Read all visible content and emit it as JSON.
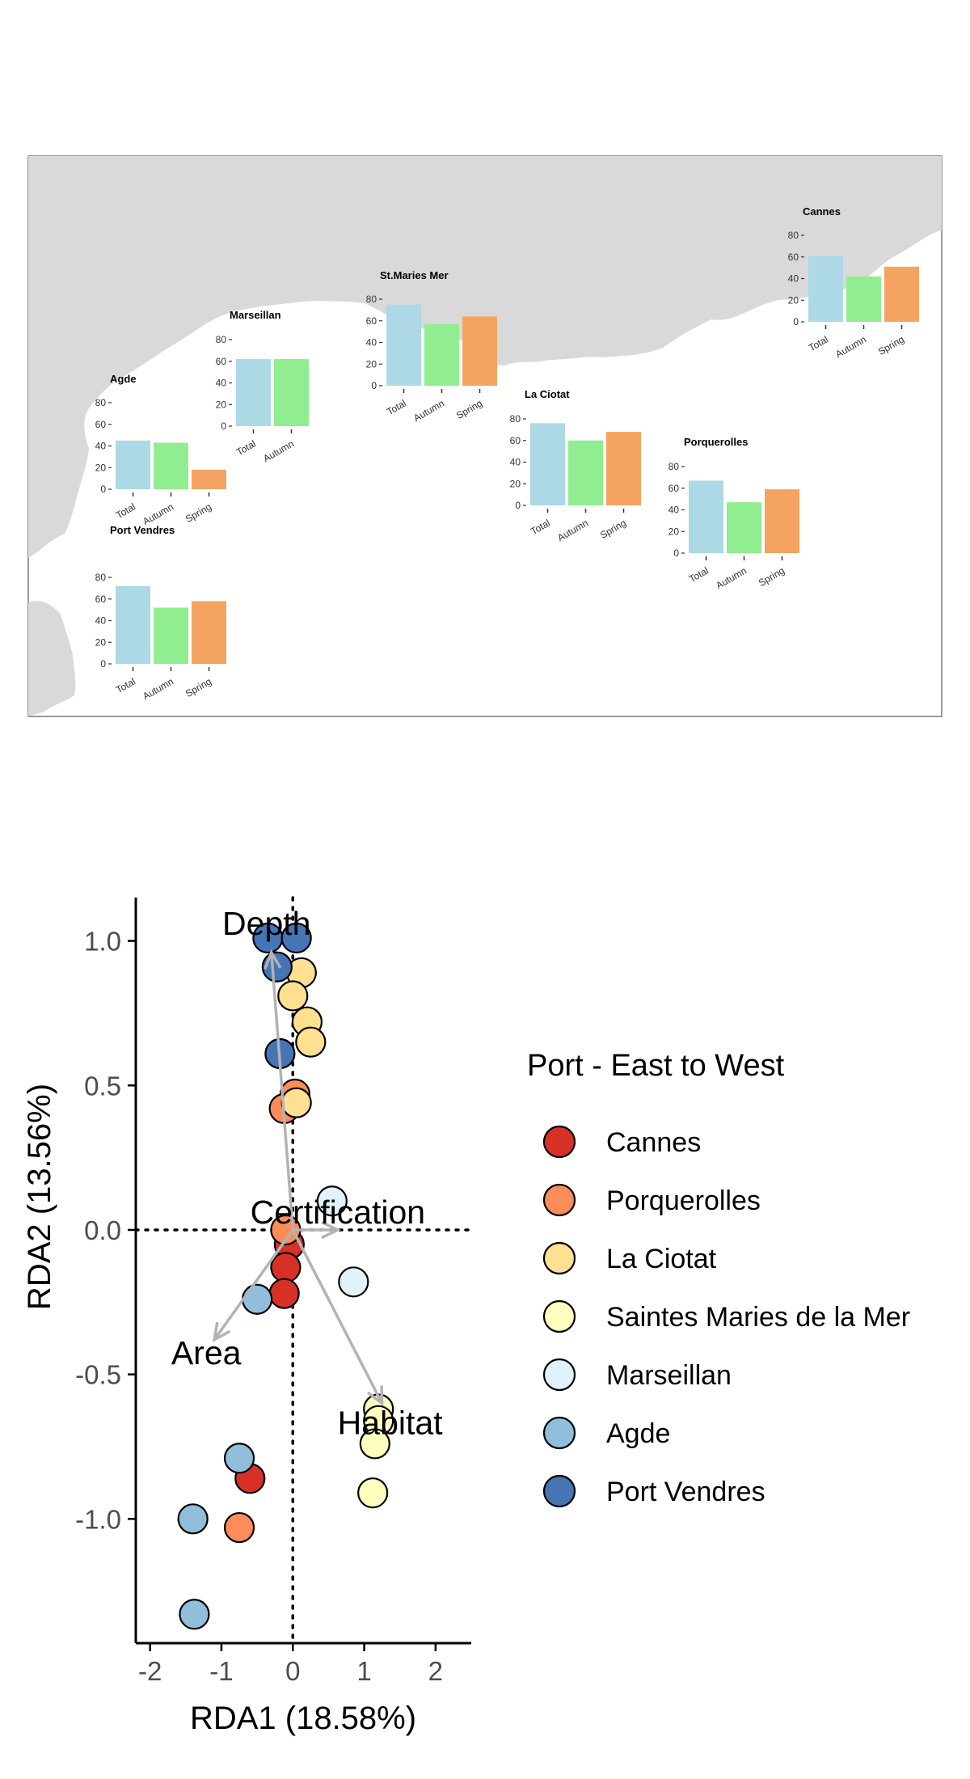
{
  "map": {
    "ylim": [
      0,
      80
    ],
    "yticks": [
      "0",
      "20",
      "40",
      "60",
      "80"
    ],
    "colors": {
      "Total": "#add8e6",
      "Autumn": "#90ee90",
      "Spring": "#f4a460"
    },
    "land_color": "#d9d9d9",
    "sites": [
      {
        "name": "Cannes",
        "categories": [
          "Total",
          "Autumn",
          "Spring"
        ],
        "values": [
          61,
          42,
          51
        ]
      },
      {
        "name": "St.Maries Mer",
        "categories": [
          "Total",
          "Autumn",
          "Spring"
        ],
        "values": [
          75,
          57,
          64
        ]
      },
      {
        "name": "Marseillan",
        "categories": [
          "Total",
          "Autumn"
        ],
        "values": [
          62,
          62
        ]
      },
      {
        "name": "Agde",
        "categories": [
          "Total",
          "Autumn",
          "Spring"
        ],
        "values": [
          45,
          43,
          18
        ]
      },
      {
        "name": "La Ciotat",
        "categories": [
          "Total",
          "Autumn",
          "Spring"
        ],
        "values": [
          76,
          60,
          68
        ]
      },
      {
        "name": "Porquerolles",
        "categories": [
          "Total",
          "Autumn",
          "Spring"
        ],
        "values": [
          67,
          47,
          59
        ]
      },
      {
        "name": "Port Vendres",
        "categories": [
          "Total",
          "Autumn",
          "Spring"
        ],
        "values": [
          72,
          52,
          58
        ]
      }
    ]
  },
  "chart_data": {
    "type": "scatter",
    "xlabel": "RDA1 (18.58%)",
    "ylabel": "RDA2 (13.56%)",
    "xlim": [
      -2.2,
      2.5
    ],
    "ylim": [
      -1.43,
      1.15
    ],
    "xticks": [
      "-2",
      "-1",
      "0",
      "1",
      "2"
    ],
    "yticks": [
      "-1.0",
      "-0.5",
      "0.0",
      "0.5",
      "1.0"
    ],
    "legend": {
      "title": "Port - East to West",
      "position": "right",
      "entries": [
        {
          "name": "Cannes",
          "color": "#d73027"
        },
        {
          "name": "Porquerolles",
          "color": "#fc8d59"
        },
        {
          "name": "La Ciotat",
          "color": "#fee090"
        },
        {
          "name": "Saintes Maries de la Mer",
          "color": "#ffffbf"
        },
        {
          "name": "Marseillan",
          "color": "#e0f3f8"
        },
        {
          "name": "Agde",
          "color": "#91bfdb"
        },
        {
          "name": "Port Vendres",
          "color": "#4575b4"
        }
      ]
    },
    "series": [
      {
        "name": "Cannes",
        "points": [
          [
            -0.05,
            -0.05
          ],
          [
            -0.1,
            -0.13
          ],
          [
            -0.12,
            -0.22
          ],
          [
            -0.6,
            -0.86
          ]
        ]
      },
      {
        "name": "Porquerolles",
        "points": [
          [
            0.03,
            0.47
          ],
          [
            -0.12,
            0.42
          ],
          [
            -0.1,
            0.0
          ],
          [
            -0.75,
            -1.03
          ]
        ]
      },
      {
        "name": "La Ciotat",
        "points": [
          [
            0.12,
            0.89
          ],
          [
            0.0,
            0.81
          ],
          [
            0.2,
            0.72
          ],
          [
            0.25,
            0.65
          ],
          [
            0.05,
            0.44
          ]
        ]
      },
      {
        "name": "Saintes Maries de la Mer",
        "points": [
          [
            1.2,
            -0.62
          ],
          [
            1.2,
            -0.66
          ],
          [
            1.15,
            -0.74
          ],
          [
            1.12,
            -0.91
          ]
        ]
      },
      {
        "name": "Marseillan",
        "points": [
          [
            0.55,
            0.1
          ],
          [
            0.85,
            -0.18
          ]
        ]
      },
      {
        "name": "Agde",
        "points": [
          [
            -0.5,
            -0.24
          ],
          [
            -0.75,
            -0.79
          ],
          [
            -1.4,
            -1.0
          ],
          [
            -1.38,
            -1.33
          ]
        ]
      },
      {
        "name": "Port Vendres",
        "points": [
          [
            -0.35,
            1.01
          ],
          [
            0.05,
            1.01
          ],
          [
            -0.22,
            0.91
          ],
          [
            -0.18,
            0.61
          ]
        ]
      }
    ],
    "vectors": [
      {
        "label": "Depth",
        "x": -0.3,
        "y": 0.96
      },
      {
        "label": "Certification",
        "x": 0.63,
        "y": 0.0
      },
      {
        "label": "Area",
        "x": -1.1,
        "y": -0.38
      },
      {
        "label": "Habitat",
        "x": 1.25,
        "y": -0.6
      }
    ]
  }
}
